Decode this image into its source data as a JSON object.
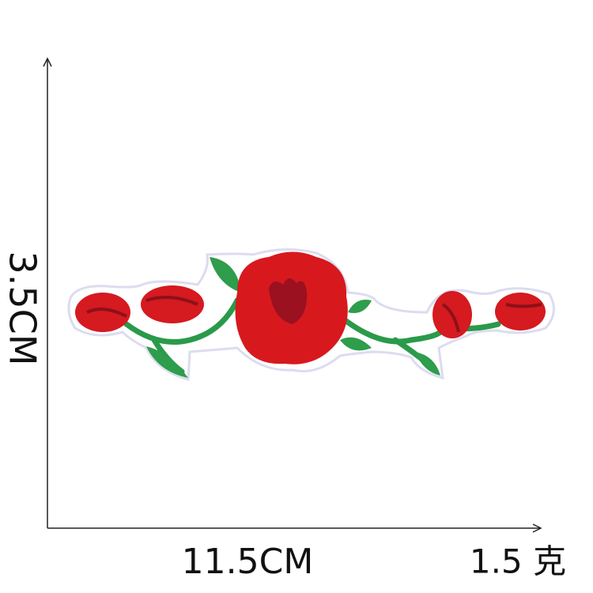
{
  "labels": {
    "height": "3.5CM",
    "width": "11.5CM",
    "weight": "1.5 克"
  }
}
